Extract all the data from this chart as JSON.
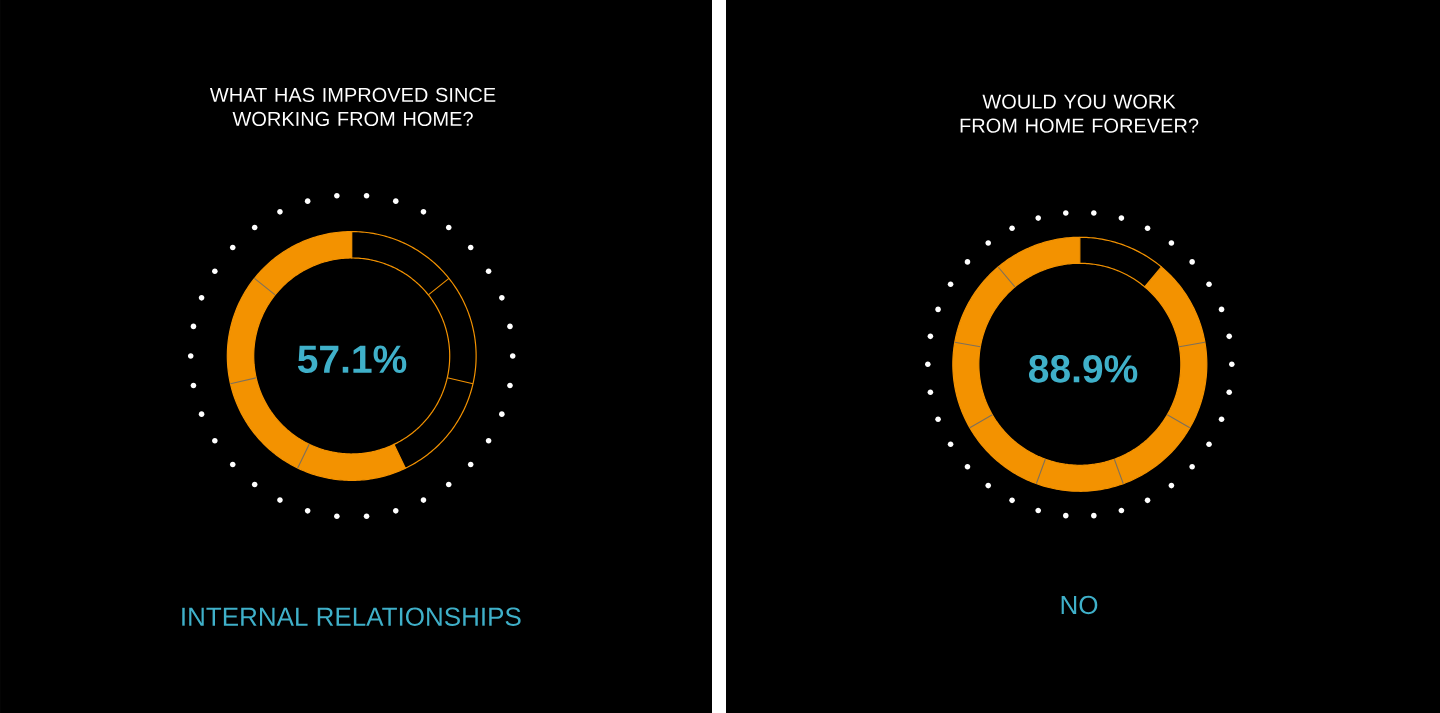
{
  "chart_data": [
    {
      "type": "donut",
      "title": "WHAT HAS IMPROVED SINCE WORKING FROM HOME?",
      "categories": [
        null,
        null
      ],
      "values": [
        57.1,
        42.9
      ],
      "colors": [
        "#f39200",
        "#000000"
      ],
      "value_labels": [
        "57.1%",
        null
      ],
      "annotations": [
        "INTERNAL RELATIONSHIPS"
      ]
    },
    {
      "type": "donut",
      "title": "WOULD YOU WORK FROM HOME FOREVER?",
      "categories": [
        null,
        null
      ],
      "values": [
        88.9,
        11.1
      ],
      "colors": [
        "#f39200",
        "#000000"
      ],
      "value_labels": [
        "88.9%",
        null
      ],
      "annotations": [
        "NO"
      ]
    }
  ]
}
